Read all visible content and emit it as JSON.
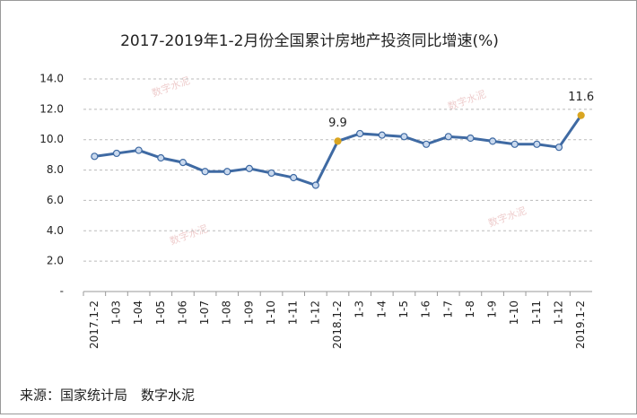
{
  "chart_data": {
    "type": "line",
    "title": "2017-2019年1-2月份全国累计房地产投资同比增速(%)",
    "categories": [
      "2017.1-2",
      "1-03",
      "1-04",
      "1-05",
      "1-06",
      "1-07",
      "1-08",
      "1-09",
      "1-10",
      "1-11",
      "1-12",
      "2018.1-2",
      "1-3",
      "1-4",
      "1-5",
      "1-6",
      "1-7",
      "1-8",
      "1-9",
      "1-10",
      "1-11",
      "1-12",
      "2019.1-2"
    ],
    "values": [
      8.9,
      9.1,
      9.3,
      8.8,
      8.5,
      7.9,
      7.9,
      8.1,
      7.8,
      7.5,
      7.0,
      9.9,
      10.4,
      10.3,
      10.2,
      9.7,
      10.2,
      10.1,
      9.9,
      9.7,
      9.7,
      9.5,
      11.6
    ],
    "value_labels": [
      null,
      null,
      null,
      null,
      null,
      null,
      null,
      null,
      null,
      null,
      null,
      "9.9",
      null,
      null,
      null,
      null,
      null,
      null,
      null,
      null,
      null,
      null,
      "11.6"
    ],
    "color": "#3f6aa3",
    "marker_color": "#c9d9ee",
    "highlight_color": "#d9a521",
    "ylim": [
      0,
      14
    ],
    "yticks": [
      {
        "value": 0,
        "label": "-"
      },
      {
        "value": 2,
        "label": "2.0"
      },
      {
        "value": 4,
        "label": "4.0"
      },
      {
        "value": 6,
        "label": "6.0"
      },
      {
        "value": 8,
        "label": "8.0"
      },
      {
        "value": 10,
        "label": "10.0"
      },
      {
        "value": 12,
        "label": "12.0"
      },
      {
        "value": 14,
        "label": "14.0"
      }
    ],
    "grid": true,
    "watermark": "数字水泥",
    "source": "来源：国家统计局　数字水泥"
  }
}
